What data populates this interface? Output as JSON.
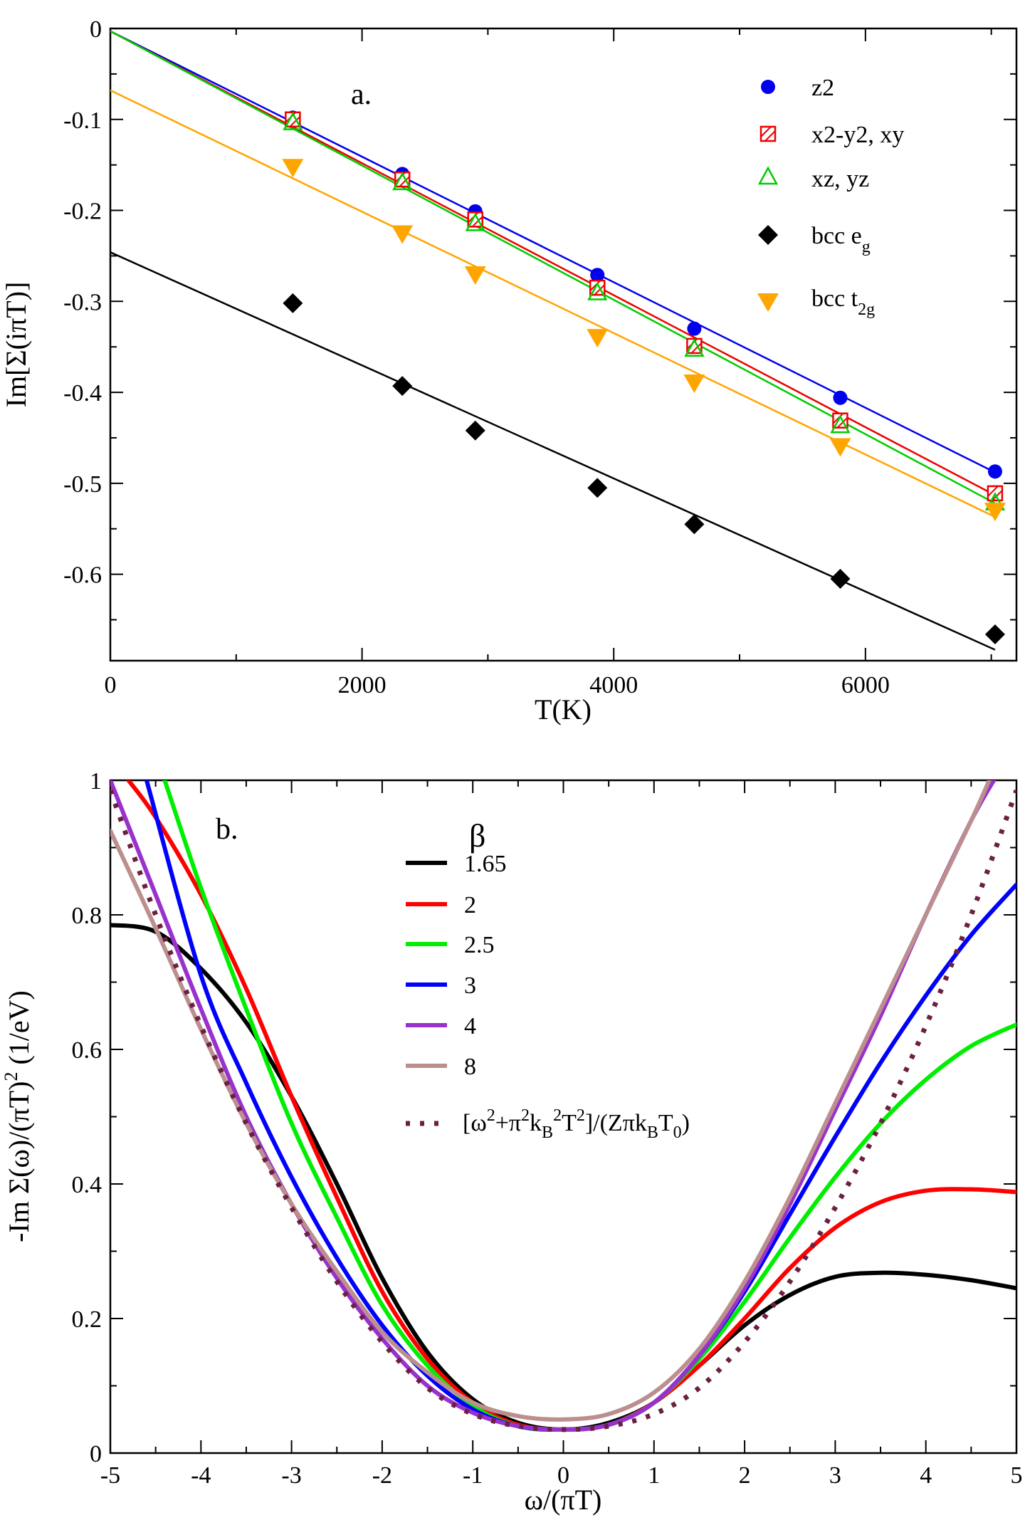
{
  "chart_data": [
    {
      "type": "scatter",
      "panel_label": "a.",
      "xlabel": "T(K)",
      "ylabel": "Im[Σ(iπT)]",
      "xlim": [
        0,
        7200
      ],
      "ylim": [
        -0.695,
        0
      ],
      "xticks": [
        0,
        2000,
        4000,
        6000
      ],
      "xtick_labels": [
        "0",
        "2000",
        "4000",
        "6000"
      ],
      "yticks": [
        0,
        -0.1,
        -0.2,
        -0.3,
        -0.4,
        -0.5,
        -0.6
      ],
      "ytick_labels": [
        "0",
        "-0.1",
        "-0.2",
        "-0.3",
        "-0.4",
        "-0.5",
        "-0.6"
      ],
      "legend_position": "top-right",
      "series": [
        {
          "name": "z2",
          "color": "#0000ee",
          "marker": "circle",
          "x": [
            1450,
            2320,
            2900,
            3870,
            4640,
            5800,
            7030
          ],
          "y": [
            -0.098,
            -0.16,
            -0.201,
            -0.271,
            -0.33,
            -0.406,
            -0.487
          ],
          "fit": {
            "x": [
              0,
              7030
            ],
            "y": [
              -0.003,
              -0.488
            ]
          }
        },
        {
          "name": "x2-y2, xy",
          "color": "#ee0000",
          "marker": "square-hatched",
          "x": [
            1450,
            2320,
            2900,
            3870,
            4640,
            5800,
            7030
          ],
          "y": [
            -0.1,
            -0.166,
            -0.21,
            -0.285,
            -0.349,
            -0.431,
            -0.511
          ],
          "fit": {
            "x": [
              0,
              7030
            ],
            "y": [
              -0.003,
              -0.513
            ]
          }
        },
        {
          "name": "xz, yz",
          "color": "#00cc00",
          "marker": "triangle-up-open",
          "x": [
            1450,
            2320,
            2900,
            3870,
            4640,
            5800,
            7030
          ],
          "y": [
            -0.103,
            -0.169,
            -0.214,
            -0.29,
            -0.352,
            -0.436,
            -0.521
          ],
          "fit": {
            "x": [
              0,
              7030
            ],
            "y": [
              -0.003,
              -0.522
            ]
          }
        },
        {
          "name": "bcc e",
          "name_sub": "g",
          "color": "#000000",
          "marker": "diamond",
          "x": [
            1450,
            2320,
            2900,
            3870,
            4640,
            5800,
            7030
          ],
          "y": [
            -0.302,
            -0.393,
            -0.442,
            -0.505,
            -0.545,
            -0.605,
            -0.666
          ],
          "fit": {
            "x": [
              0,
              7030
            ],
            "y": [
              -0.246,
              -0.683
            ]
          }
        },
        {
          "name": "bcc t",
          "name_sub": "2g",
          "color": "#ffa500",
          "marker": "triangle-down",
          "x": [
            1450,
            2320,
            2900,
            3870,
            4640,
            5800,
            7030
          ],
          "y": [
            -0.152,
            -0.225,
            -0.27,
            -0.339,
            -0.389,
            -0.459,
            -0.53
          ],
          "fit": {
            "x": [
              0,
              7030
            ],
            "y": [
              -0.068,
              -0.537
            ]
          }
        }
      ]
    },
    {
      "type": "line",
      "panel_label": "b.",
      "xlabel": "ω/(πT)",
      "ylabel": "-Im Σ(ω)/(πT)² (1/eV)",
      "xlim": [
        -5,
        5
      ],
      "ylim": [
        0,
        1
      ],
      "xticks": [
        -5,
        -4,
        -3,
        -2,
        -1,
        0,
        1,
        2,
        3,
        4,
        5
      ],
      "xtick_labels": [
        "-5",
        "-4",
        "-3",
        "-2",
        "-1",
        "0",
        "1",
        "2",
        "3",
        "4",
        "5"
      ],
      "yticks": [
        0,
        0.2,
        0.4,
        0.6,
        0.8,
        1
      ],
      "ytick_labels": [
        "0",
        "0.2",
        "0.4",
        "0.6",
        "0.8",
        "1"
      ],
      "legend_title": "β",
      "legend_position": "top-center",
      "series": [
        {
          "name": "1.65",
          "color": "#000000",
          "x": [
            -5,
            -4.5,
            -4,
            -3.5,
            -3,
            -2.5,
            -2,
            -1.5,
            -1,
            -0.5,
            0,
            0.5,
            1,
            1.5,
            2,
            2.5,
            3,
            3.5,
            4,
            4.5,
            5
          ],
          "y": [
            0.785,
            0.775,
            0.72,
            0.64,
            0.53,
            0.4,
            0.26,
            0.15,
            0.08,
            0.045,
            0.035,
            0.045,
            0.075,
            0.13,
            0.19,
            0.235,
            0.262,
            0.268,
            0.265,
            0.257,
            0.245
          ]
        },
        {
          "name": "2",
          "color": "#ff0000",
          "x": [
            -4.8,
            -4.5,
            -4,
            -3.5,
            -3,
            -2.5,
            -2,
            -1.5,
            -1,
            -0.5,
            0,
            0.5,
            1,
            1.5,
            2,
            2.5,
            3,
            3.5,
            4,
            4.5,
            5
          ],
          "y": [
            1.0,
            0.945,
            0.83,
            0.69,
            0.53,
            0.38,
            0.24,
            0.14,
            0.075,
            0.042,
            0.035,
            0.042,
            0.075,
            0.13,
            0.2,
            0.275,
            0.335,
            0.373,
            0.39,
            0.392,
            0.388
          ]
        },
        {
          "name": "2.5",
          "color": "#00ee00",
          "x": [
            -4.4,
            -4,
            -3.5,
            -3,
            -2.5,
            -2,
            -1.5,
            -1,
            -0.5,
            0,
            0.5,
            1,
            1.5,
            2,
            2.5,
            3,
            3.5,
            4,
            4.5,
            5
          ],
          "y": [
            1.0,
            0.84,
            0.66,
            0.49,
            0.35,
            0.22,
            0.13,
            0.07,
            0.04,
            0.035,
            0.042,
            0.075,
            0.14,
            0.225,
            0.32,
            0.41,
            0.49,
            0.555,
            0.605,
            0.637
          ]
        },
        {
          "name": "3",
          "color": "#0000ff",
          "x": [
            -4.6,
            -4,
            -3.5,
            -3,
            -2.5,
            -2,
            -1.5,
            -1,
            -0.5,
            0,
            0.5,
            1,
            1.5,
            2,
            2.5,
            3,
            3.5,
            4,
            4.5,
            5
          ],
          "y": [
            1.0,
            0.71,
            0.55,
            0.41,
            0.29,
            0.19,
            0.115,
            0.065,
            0.04,
            0.035,
            0.042,
            0.075,
            0.145,
            0.24,
            0.355,
            0.47,
            0.58,
            0.68,
            0.77,
            0.845
          ]
        },
        {
          "name": "4",
          "color": "#9932cc",
          "x": [
            -5,
            -4.5,
            -4,
            -3.5,
            -3,
            -2.5,
            -2,
            -1.5,
            -1,
            -0.5,
            0,
            0.5,
            1,
            1.5,
            2,
            2.5,
            3,
            3.5,
            4,
            4.5,
            4.75
          ],
          "y": [
            1.0,
            0.83,
            0.66,
            0.5,
            0.37,
            0.26,
            0.17,
            0.1,
            0.06,
            0.04,
            0.035,
            0.042,
            0.075,
            0.145,
            0.245,
            0.37,
            0.51,
            0.65,
            0.8,
            0.94,
            1.0
          ]
        },
        {
          "name": "8",
          "color": "#bc8f8f",
          "x": [
            -5,
            -4.5,
            -4,
            -3.5,
            -3,
            -2.5,
            -2,
            -1.5,
            -1,
            -0.5,
            0,
            0.5,
            1,
            1.5,
            2,
            2.5,
            3,
            3.5,
            4,
            4.5,
            4.7
          ],
          "y": [
            0.925,
            0.78,
            0.63,
            0.49,
            0.37,
            0.27,
            0.18,
            0.12,
            0.075,
            0.055,
            0.05,
            0.058,
            0.09,
            0.155,
            0.255,
            0.38,
            0.52,
            0.66,
            0.8,
            0.94,
            1.0
          ]
        },
        {
          "name": "[ω²+π²k_B²T²]/(Zπk_BT₀)",
          "color": "#6b2040",
          "dashed": true,
          "x": [
            -5,
            -4.5,
            -4,
            -3.5,
            -3,
            -2.5,
            -2,
            -1.5,
            -1,
            -0.5,
            0,
            0.5,
            1,
            1.5,
            2,
            2.5,
            3,
            3.5,
            4,
            4.5,
            5
          ],
          "y": [
            0.985,
            0.8,
            0.635,
            0.49,
            0.365,
            0.255,
            0.165,
            0.097,
            0.058,
            0.04,
            0.035,
            0.04,
            0.058,
            0.097,
            0.165,
            0.255,
            0.365,
            0.49,
            0.635,
            0.8,
            0.985
          ]
        }
      ]
    }
  ],
  "legend_b_labels": {
    "last": {
      "p1": "[ω",
      "s1": "2",
      "p2": "+π",
      "s2": "2",
      "p3": "k",
      "b1": "B",
      "s3": "2",
      "p4": "T",
      "s4": "2",
      "p5": "]/(Zπk",
      "b2": "B",
      "p6": "T",
      "b3": "0",
      "p7": ")"
    }
  },
  "ylabel_b_parts": {
    "p1": "-Im Σ(ω)/(πT)",
    "s1": "2",
    "p2": " (1/eV)"
  }
}
